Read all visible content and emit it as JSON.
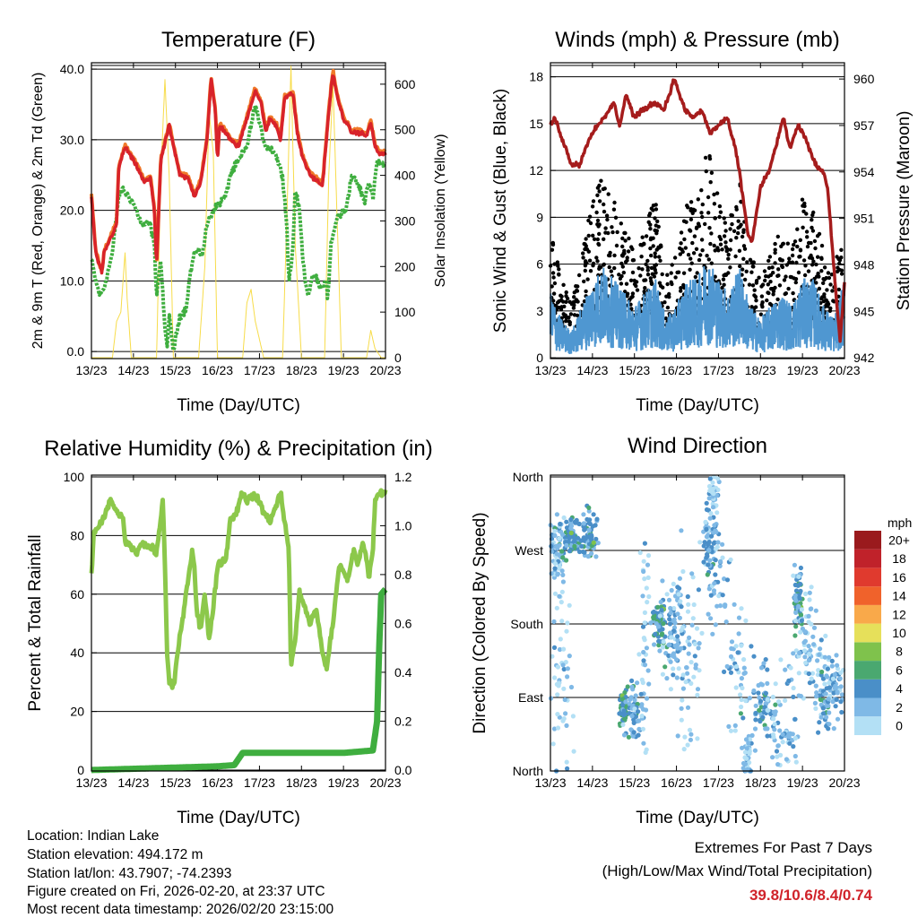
{
  "footer": {
    "location": "Location: Indian Lake",
    "elevation": "Station elevation: 494.172 m",
    "latlon": "Station lat/lon: 43.7907; -74.2393",
    "created": "Figure created on Fri, 2026-02-20, at 23:37 UTC",
    "recent": "Most recent data timestamp: 2026/02/20 23:15:00",
    "extremes_title": "Extremes For Past 7 Days",
    "extremes_sub": "(High/Low/Max Wind/Total Precipitation)",
    "extremes_values": "39.8/10.6/8.4/0.74"
  },
  "chart_data": [
    {
      "id": "temp",
      "type": "line",
      "title": "Temperature (F)",
      "xlabel": "Time (Day/UTC)",
      "ylabel": "2m & 9m T (Red, Orange) & 2m Td (Green)",
      "y2label": "Solar Insolation (Yellow)",
      "xticks": [
        "13/23",
        "14/23",
        "15/23",
        "16/23",
        "17/23",
        "18/23",
        "19/23",
        "20/23"
      ],
      "yticks": [
        0,
        10,
        20,
        30,
        40
      ],
      "ytick_labels": [
        "0.0",
        "10.0",
        "20.0",
        "30.0",
        "40.0"
      ],
      "y2ticks": [
        0,
        100,
        200,
        300,
        400,
        500,
        600
      ],
      "y2tick_labels": [
        "0",
        "100",
        "200",
        "300",
        "400",
        "500",
        "600"
      ],
      "ylim": [
        -1.0,
        40.9
      ],
      "y2lim": [
        -2,
        647
      ],
      "xlim": [
        0,
        7
      ],
      "colors": {
        "t2": "#d8232a",
        "t9": "#f07a2a",
        "td": "#3fae3f",
        "solar": "#f7dc4a"
      },
      "t2m": {
        "x": [
          0,
          0.1,
          0.25,
          0.3,
          0.6,
          0.65,
          0.8,
          1.1,
          1.25,
          1.4,
          1.5,
          1.55,
          1.65,
          1.85,
          2.1,
          2.3,
          2.45,
          2.6,
          2.75,
          2.85,
          2.95,
          3.0,
          3.05,
          3.2,
          3.3,
          3.5,
          3.7,
          3.9,
          4.05,
          4.15,
          4.25,
          4.4,
          4.5,
          4.6,
          4.8,
          4.9,
          5.0,
          5.2,
          5.4,
          5.5,
          5.65,
          5.75,
          5.85,
          6.0,
          6.2,
          6.4,
          6.55,
          6.65,
          6.75,
          6.85,
          7
        ],
        "y": [
          22,
          14,
          11,
          14,
          18,
          26,
          29,
          26,
          24,
          24.5,
          20,
          12,
          27,
          32,
          25,
          24.5,
          22,
          24,
          30,
          38.5,
          34,
          27,
          32,
          31,
          30,
          29,
          33,
          37,
          35,
          31,
          33,
          32,
          30,
          36,
          36.5,
          31,
          28,
          25,
          24,
          23.5,
          34,
          39.5,
          36,
          33,
          31,
          31,
          30.5,
          32.5,
          29,
          28,
          28
        ]
      },
      "td2m": {
        "x": [
          0,
          0.1,
          0.2,
          0.3,
          0.5,
          0.65,
          0.75,
          1,
          1.2,
          1.4,
          1.5,
          1.55,
          1.65,
          1.75,
          1.8,
          1.85,
          1.95,
          2.1,
          2.25,
          2.35,
          2.45,
          2.65,
          2.75,
          2.9,
          3.05,
          3.2,
          3.3,
          3.5,
          3.7,
          3.9,
          4.05,
          4.15,
          4.35,
          4.55,
          4.65,
          4.7,
          4.75,
          4.8,
          4.85,
          4.95,
          5.05,
          5.15,
          5.3,
          5.45,
          5.6,
          5.62,
          5.7,
          5.85,
          6.05,
          6.2,
          6.4,
          6.5,
          6.6,
          6.7,
          6.8,
          7
        ],
        "y": [
          13,
          10,
          8,
          9,
          14,
          22,
          23,
          21,
          18,
          18,
          15,
          8,
          13,
          3,
          1,
          5,
          0,
          5,
          6,
          11,
          14,
          14,
          18,
          20,
          21,
          22,
          25,
          27,
          29,
          35,
          31,
          29,
          28.5,
          25,
          18,
          10,
          12,
          15,
          23,
          20,
          12,
          8,
          11,
          9,
          10,
          7,
          15,
          19,
          20,
          25,
          23,
          21,
          24,
          22,
          27,
          26.5
        ]
      },
      "solar": {
        "x": [
          0,
          0.5,
          0.6,
          0.7,
          0.8,
          0.85,
          0.95,
          1.55,
          1.65,
          1.75,
          1.85,
          1.95,
          2.55,
          2.7,
          2.8,
          2.9,
          3.0,
          3.6,
          3.7,
          3.8,
          3.9,
          4.1,
          4.55,
          4.65,
          4.75,
          4.85,
          5.0,
          5.55,
          5.65,
          5.75,
          5.85,
          5.95,
          6.55,
          6.65,
          6.75,
          6.9,
          7
        ],
        "y": [
          0,
          0,
          80,
          100,
          230,
          130,
          0,
          0,
          400,
          610,
          400,
          0,
          0,
          200,
          540,
          450,
          0,
          0,
          120,
          150,
          80,
          0,
          0,
          300,
          640,
          250,
          0,
          0,
          400,
          600,
          300,
          0,
          0,
          60,
          20,
          0,
          0
        ]
      }
    },
    {
      "id": "wind",
      "type": "scatter",
      "title": "Winds (mph) & Pressure (mb)",
      "xlabel": "Time (Day/UTC)",
      "ylabel": "Sonic Wind & Gust (Blue, Black)",
      "y2label": "Station Pressure (Maroon)",
      "xticks": [
        "13/23",
        "14/23",
        "15/23",
        "16/23",
        "17/23",
        "18/23",
        "19/23",
        "20/23"
      ],
      "yticks": [
        0,
        3,
        6,
        9,
        12,
        15,
        18
      ],
      "ytick_labels": [
        "0",
        "3",
        "6",
        "9",
        "12",
        "15",
        "18"
      ],
      "y2ticks": [
        942,
        945,
        948,
        951,
        954,
        957,
        960
      ],
      "y2tick_labels": [
        "942",
        "945",
        "948",
        "951",
        "954",
        "957",
        "960"
      ],
      "ylim": [
        -0.05,
        18.9
      ],
      "y2lim": [
        941.95,
        961.05
      ],
      "xlim": [
        0,
        7
      ],
      "colors": {
        "wind": "#4f97d1",
        "gust": "#000000",
        "pressure": "#a51c1c"
      },
      "wind_mean_every_quarter_day": [
        2.5,
        1.5,
        1,
        2,
        3,
        3.5,
        3,
        2.5,
        2,
        2.5,
        3,
        1.5,
        2,
        3,
        3,
        4,
        3,
        2.5,
        3.5,
        2,
        1.5,
        2,
        2.5,
        2,
        3,
        3,
        2,
        1.5,
        3
      ],
      "pressure": {
        "x": [
          0,
          0.1,
          0.3,
          0.5,
          0.7,
          0.9,
          1.1,
          1.3,
          1.5,
          1.65,
          1.8,
          2.0,
          2.2,
          2.5,
          2.7,
          2.95,
          3.2,
          3.4,
          3.6,
          3.8,
          4.0,
          4.2,
          4.4,
          4.5,
          4.7,
          4.8,
          5.0,
          5.2,
          5.4,
          5.55,
          5.7,
          5.9,
          6.1,
          6.3,
          6.5,
          6.6,
          6.8,
          6.9,
          7
        ],
        "y": [
          957,
          957.5,
          956,
          954.5,
          954.5,
          956,
          957,
          957.5,
          958.5,
          957,
          959,
          957.5,
          958,
          958.5,
          958,
          960,
          958,
          957.5,
          958,
          956.5,
          957,
          957.5,
          955.5,
          954,
          950,
          949.5,
          953,
          954,
          956,
          957.5,
          955.5,
          957,
          956,
          954.5,
          954,
          953,
          946,
          943,
          947
        ]
      }
    },
    {
      "id": "rh",
      "type": "line",
      "title": "Relative Humidity (%) & Precipitation (in)",
      "xlabel": "Time (Day/UTC)",
      "ylabel": "Percent & Total Rainfall",
      "xticks": [
        "13/23",
        "14/23",
        "15/23",
        "16/23",
        "17/23",
        "18/23",
        "19/23",
        "20/23"
      ],
      "yticks": [
        0,
        20,
        40,
        60,
        80,
        100
      ],
      "ytick_labels": [
        "0",
        "20",
        "40",
        "60",
        "80",
        "100"
      ],
      "y2ticks": [
        0,
        0.2,
        0.4,
        0.6,
        0.8,
        1.0,
        1.2
      ],
      "y2tick_labels": [
        "0.0",
        "0.2",
        "0.4",
        "0.6",
        "0.8",
        "1.0",
        "1.2"
      ],
      "ylim": [
        -0.3,
        100.6
      ],
      "y2lim": [
        -0.004,
        1.207
      ],
      "xlim": [
        0,
        7
      ],
      "colors": {
        "rh": "#8cc84b",
        "precip": "#3fae3f"
      },
      "rh": {
        "x": [
          0,
          0.05,
          0.2,
          0.35,
          0.45,
          0.6,
          0.75,
          0.8,
          0.95,
          1.1,
          1.2,
          1.3,
          1.45,
          1.55,
          1.7,
          1.75,
          1.8,
          1.85,
          1.95,
          2.1,
          2.25,
          2.4,
          2.45,
          2.5,
          2.6,
          2.7,
          2.8,
          2.9,
          3.0,
          3.2,
          3.3,
          3.45,
          3.6,
          3.7,
          3.9,
          4.1,
          4.25,
          4.4,
          4.5,
          4.55,
          4.7,
          4.75,
          4.85,
          4.95,
          5.1,
          5.2,
          5.35,
          5.5,
          5.6,
          5.75,
          5.9,
          6.1,
          6.25,
          6.35,
          6.45,
          6.55,
          6.6,
          6.7,
          6.75,
          6.9,
          7
        ],
        "y": [
          66,
          80,
          84,
          88,
          92,
          88,
          86,
          78,
          76,
          74,
          78,
          76,
          76,
          74,
          92,
          70,
          40,
          30,
          28,
          45,
          60,
          75,
          70,
          55,
          48,
          60,
          45,
          55,
          70,
          72,
          85,
          88,
          95,
          92,
          94,
          88,
          85,
          90,
          95,
          90,
          75,
          35,
          45,
          60,
          55,
          50,
          55,
          40,
          35,
          50,
          70,
          65,
          75,
          70,
          78,
          72,
          65,
          75,
          92,
          95,
          95
        ]
      },
      "precip": {
        "x": [
          0,
          1,
          2,
          3,
          3.4,
          3.6,
          4,
          5,
          6,
          6.7,
          6.8,
          6.85,
          6.9,
          7
        ],
        "y": [
          0,
          0.005,
          0.01,
          0.015,
          0.02,
          0.07,
          0.07,
          0.07,
          0.07,
          0.08,
          0.2,
          0.5,
          0.72,
          0.74
        ]
      }
    },
    {
      "id": "dir",
      "type": "scatter",
      "title": "Wind Direction",
      "xlabel": "Time (Day/UTC)",
      "ylabel": "Direction (Colored By Speed)",
      "xticks": [
        "13/23",
        "14/23",
        "15/23",
        "16/23",
        "17/23",
        "18/23",
        "19/23",
        "20/23"
      ],
      "yticks": [
        0,
        90,
        180,
        270,
        360
      ],
      "ytick_labels": [
        "North",
        "East",
        "South",
        "West",
        "North"
      ],
      "ylim": [
        0,
        362.2
      ],
      "xlim": [
        0,
        7
      ],
      "colorbar": {
        "unit": "mph",
        "levels": [
          "0",
          "2",
          "4",
          "6",
          "8",
          "10",
          "12",
          "14",
          "16",
          "18",
          "20+"
        ],
        "colors": [
          "#b3e0f5",
          "#7fb9e6",
          "#4a8fc8",
          "#4aa870",
          "#7fc24c",
          "#e6e05a",
          "#f9a94a",
          "#f0622b",
          "#e03a2e",
          "#c0222a",
          "#9a1a1d"
        ]
      },
      "clusters_day_dir_sdday_sddir_count_speed": [
        [
          0.15,
          270,
          0.15,
          40,
          60,
          2
        ],
        [
          0.5,
          285,
          0.2,
          20,
          80,
          4
        ],
        [
          0.9,
          290,
          0.15,
          25,
          60,
          4
        ],
        [
          0.25,
          120,
          0.25,
          120,
          50,
          1
        ],
        [
          1.75,
          75,
          0.1,
          20,
          50,
          5
        ],
        [
          2.0,
          70,
          0.2,
          30,
          50,
          3
        ],
        [
          2.25,
          150,
          0.1,
          110,
          40,
          1
        ],
        [
          2.6,
          180,
          0.15,
          25,
          60,
          4
        ],
        [
          3.0,
          170,
          0.3,
          50,
          80,
          2
        ],
        [
          3.3,
          150,
          0.3,
          100,
          50,
          1
        ],
        [
          3.8,
          280,
          0.15,
          40,
          60,
          3
        ],
        [
          3.9,
          340,
          0.1,
          20,
          30,
          1
        ],
        [
          4.0,
          230,
          0.25,
          50,
          40,
          2
        ],
        [
          4.5,
          120,
          0.3,
          60,
          50,
          2
        ],
        [
          4.7,
          20,
          0.1,
          30,
          40,
          2
        ],
        [
          5.1,
          80,
          0.2,
          40,
          60,
          3
        ],
        [
          5.6,
          60,
          0.3,
          50,
          60,
          2
        ],
        [
          5.9,
          210,
          0.1,
          30,
          50,
          4
        ],
        [
          6.0,
          170,
          0.25,
          60,
          50,
          1
        ],
        [
          6.3,
          140,
          0.3,
          60,
          40,
          1
        ],
        [
          6.6,
          90,
          0.2,
          30,
          60,
          3
        ],
        [
          6.8,
          110,
          0.15,
          30,
          40,
          2
        ]
      ]
    }
  ]
}
